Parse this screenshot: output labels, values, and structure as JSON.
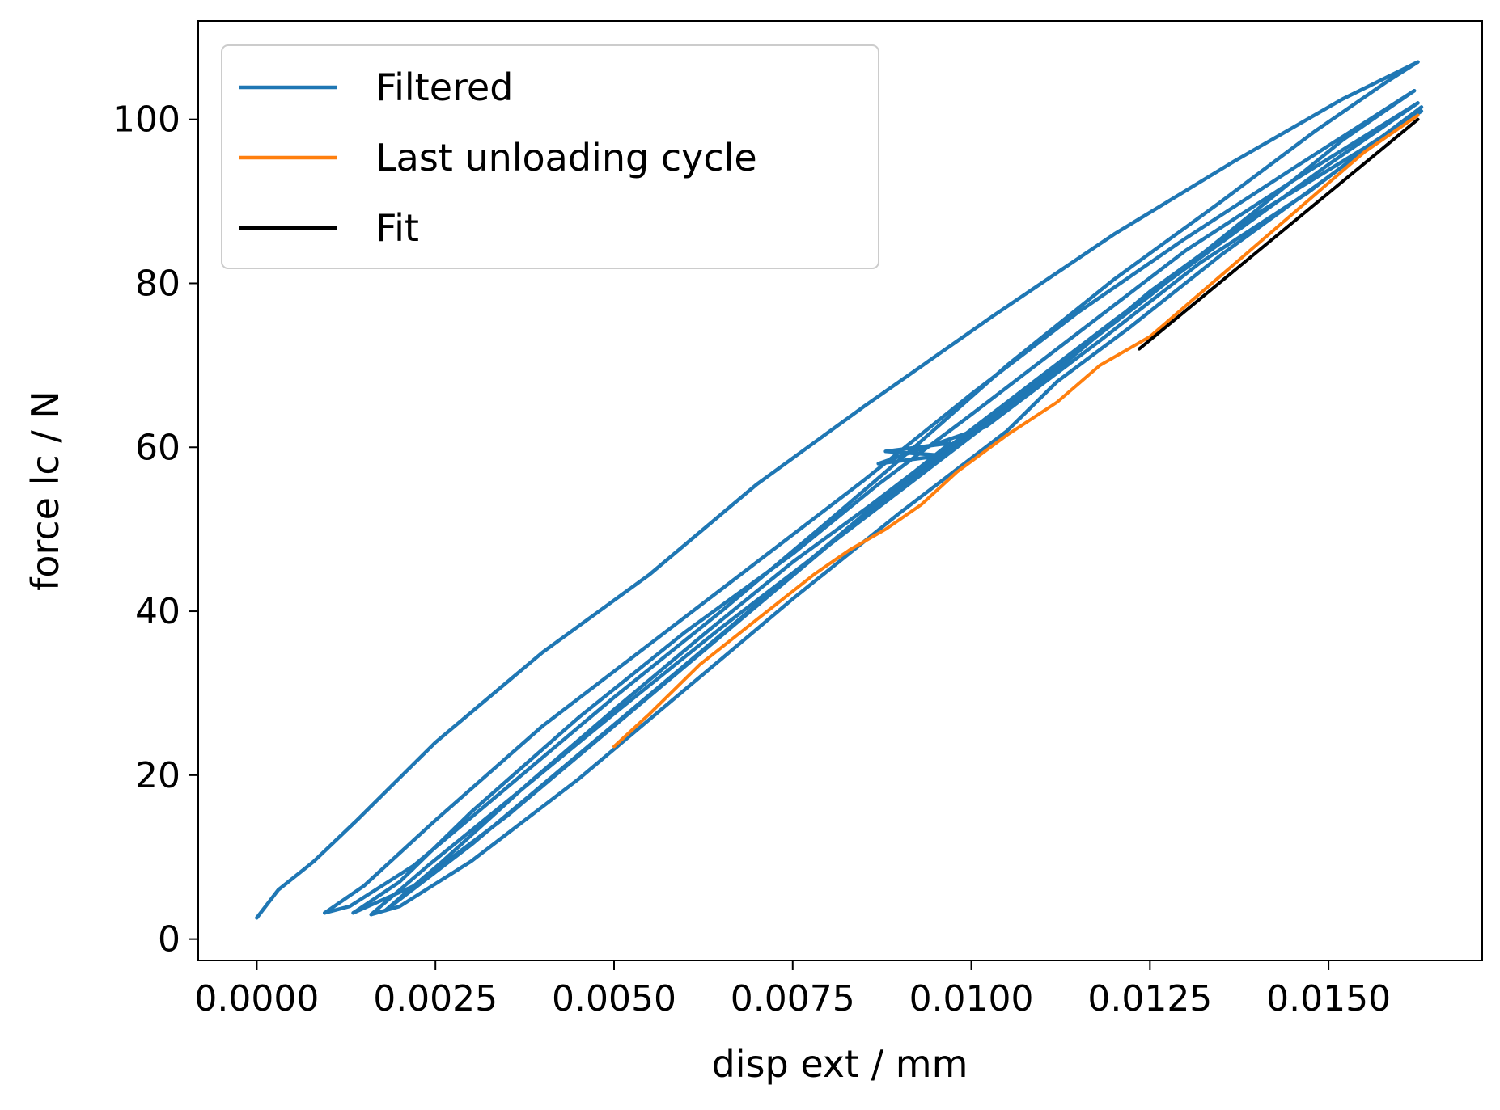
{
  "chart_data": {
    "type": "line",
    "title": "",
    "xlabel": "disp ext / mm",
    "ylabel": "force lc / N",
    "xlim": [
      -0.00082,
      0.01715
    ],
    "ylim": [
      -2.6,
      112.0
    ],
    "xticks": [
      0.0,
      0.0025,
      0.005,
      0.0075,
      0.01,
      0.0125,
      0.015
    ],
    "xtick_labels": [
      "0.0000",
      "0.0025",
      "0.0050",
      "0.0075",
      "0.0100",
      "0.0125",
      "0.0150"
    ],
    "yticks": [
      0,
      20,
      40,
      60,
      80,
      100
    ],
    "ytick_labels": [
      "0",
      "20",
      "40",
      "60",
      "80",
      "100"
    ],
    "grid": false,
    "legend_position": "top-left",
    "series": [
      {
        "name": "Filtered",
        "color": "#1f77b4",
        "paths": [
          [
            [
              0.0,
              2.6
            ],
            [
              0.0003,
              6.0
            ],
            [
              0.0008,
              9.5
            ],
            [
              0.0014,
              14.5
            ],
            [
              0.0025,
              24.0
            ],
            [
              0.004,
              35.0
            ],
            [
              0.0055,
              44.5
            ],
            [
              0.007,
              55.5
            ],
            [
              0.0085,
              65.0
            ],
            [
              0.0103,
              76.0
            ],
            [
              0.012,
              86.0
            ],
            [
              0.0137,
              95.0
            ],
            [
              0.0152,
              102.5
            ],
            [
              0.01625,
              107.0
            ]
          ],
          [
            [
              0.01625,
              107.0
            ],
            [
              0.0158,
              104.5
            ],
            [
              0.0148,
              98.5
            ],
            [
              0.0135,
              90.0
            ],
            [
              0.012,
              80.5
            ],
            [
              0.0105,
              70.0
            ],
            [
              0.0092,
              60.0
            ],
            [
              0.008,
              51.0
            ],
            [
              0.0065,
              40.0
            ],
            [
              0.005,
              29.5
            ],
            [
              0.0035,
              18.5
            ],
            [
              0.0022,
              9.0
            ],
            [
              0.0013,
              4.0
            ],
            [
              0.00095,
              3.2
            ]
          ],
          [
            [
              0.00095,
              3.2
            ],
            [
              0.0015,
              6.5
            ],
            [
              0.0025,
              14.5
            ],
            [
              0.004,
              26.0
            ],
            [
              0.0055,
              36.0
            ],
            [
              0.007,
              46.0
            ],
            [
              0.0085,
              56.0
            ],
            [
              0.01,
              66.5
            ],
            [
              0.0115,
              76.5
            ],
            [
              0.013,
              85.5
            ],
            [
              0.0145,
              94.0
            ],
            [
              0.0162,
              103.5
            ]
          ],
          [
            [
              0.0162,
              103.5
            ],
            [
              0.0152,
              97.5
            ],
            [
              0.014,
              89.0
            ],
            [
              0.0125,
              78.5
            ],
            [
              0.011,
              68.5
            ],
            [
              0.0095,
              58.5
            ],
            [
              0.008,
              48.0
            ],
            [
              0.0065,
              37.0
            ],
            [
              0.005,
              26.0
            ],
            [
              0.0035,
              15.0
            ],
            [
              0.0022,
              6.5
            ],
            [
              0.00135,
              3.2
            ]
          ],
          [
            [
              0.00135,
              3.2
            ],
            [
              0.002,
              7.0
            ],
            [
              0.003,
              15.5
            ],
            [
              0.0045,
              27.0
            ],
            [
              0.006,
              37.5
            ],
            [
              0.0075,
              47.0
            ],
            [
              0.0087,
              55.5
            ],
            [
              0.01,
              64.0
            ],
            [
              0.0115,
              74.0
            ],
            [
              0.013,
              84.0
            ],
            [
              0.0145,
              92.5
            ],
            [
              0.01625,
              102.0
            ]
          ],
          [
            [
              0.01625,
              102.0
            ],
            [
              0.015,
              94.5
            ],
            [
              0.0135,
              85.0
            ],
            [
              0.012,
              75.5
            ],
            [
              0.0105,
              65.5
            ],
            [
              0.009,
              55.5
            ],
            [
              0.0075,
              44.5
            ],
            [
              0.006,
              33.5
            ],
            [
              0.0045,
              22.5
            ],
            [
              0.003,
              11.5
            ],
            [
              0.0018,
              3.5
            ]
          ],
          [
            [
              0.0018,
              3.5
            ],
            [
              0.0026,
              9.5
            ],
            [
              0.0038,
              19.0
            ],
            [
              0.005,
              28.0
            ],
            [
              0.0063,
              37.5
            ],
            [
              0.0075,
              46.0
            ],
            [
              0.0086,
              53.0
            ],
            [
              0.0092,
              57.0
            ],
            [
              0.0097,
              60.5
            ]
          ],
          [
            [
              0.0097,
              60.5
            ],
            [
              0.0088,
              59.5
            ],
            [
              0.0096,
              59.0
            ],
            [
              0.0087,
              58.0
            ],
            [
              0.0102,
              62.5
            ],
            [
              0.0118,
              73.0
            ],
            [
              0.0132,
              82.5
            ],
            [
              0.0147,
              91.0
            ],
            [
              0.0163,
              101.5
            ]
          ],
          [
            [
              0.0163,
              101.5
            ],
            [
              0.015,
              93.0
            ],
            [
              0.0135,
              83.5
            ],
            [
              0.0122,
              74.5
            ],
            [
              0.0112,
              68.0
            ]
          ],
          [
            [
              0.0112,
              68.0
            ],
            [
              0.0105,
              62.0
            ],
            [
              0.009,
              52.0
            ],
            [
              0.0075,
              41.5
            ],
            [
              0.006,
              30.5
            ],
            [
              0.0045,
              19.5
            ],
            [
              0.003,
              9.5
            ],
            [
              0.002,
              4.0
            ],
            [
              0.0016,
              3.0
            ]
          ],
          [
            [
              0.0016,
              3.0
            ],
            [
              0.0024,
              9.0
            ],
            [
              0.0036,
              17.5
            ],
            [
              0.005,
              27.5
            ],
            [
              0.0065,
              38.0
            ],
            [
              0.008,
              48.0
            ],
            [
              0.0095,
              58.0
            ],
            [
              0.011,
              68.0
            ],
            [
              0.0125,
              79.0
            ],
            [
              0.014,
              88.5
            ],
            [
              0.0155,
              96.5
            ],
            [
              0.0163,
              101.0
            ]
          ]
        ]
      },
      {
        "name": "Last unloading cycle",
        "color": "#ff7f0e",
        "paths": [
          [
            [
              0.01625,
              100.5
            ],
            [
              0.0155,
              96.0
            ],
            [
              0.0145,
              88.5
            ],
            [
              0.0135,
              81.0
            ],
            [
              0.0125,
              73.5
            ],
            [
              0.0118,
              70.0
            ],
            [
              0.0112,
              65.5
            ],
            [
              0.0105,
              61.5
            ],
            [
              0.0098,
              57.0
            ],
            [
              0.0093,
              53.0
            ],
            [
              0.0088,
              50.0
            ],
            [
              0.0083,
              47.5
            ],
            [
              0.0078,
              44.5
            ],
            [
              0.007,
              39.0
            ],
            [
              0.0062,
              33.5
            ],
            [
              0.0055,
              27.5
            ],
            [
              0.005,
              23.5
            ]
          ]
        ]
      },
      {
        "name": "Fit",
        "color": "#000000",
        "paths": [
          [
            [
              0.01235,
              72.0
            ],
            [
              0.01625,
              100.0
            ]
          ]
        ]
      }
    ]
  }
}
